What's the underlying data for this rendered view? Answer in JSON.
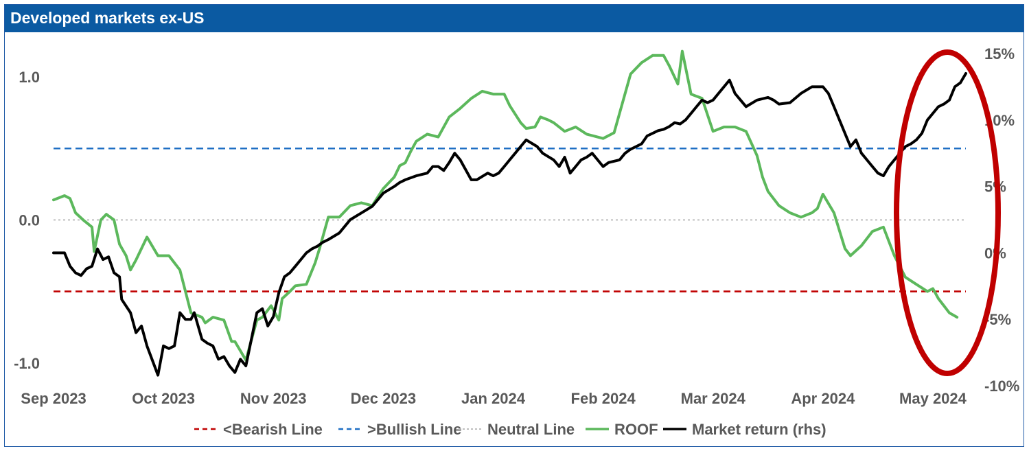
{
  "title": "Developed markets ex-US",
  "colors": {
    "header": "#0b5aa2",
    "bearish": "#c00000",
    "bullish": "#1f6fc4",
    "neutral": "#bfbfbf",
    "roof": "#5cb85c",
    "market": "#000000",
    "highlight": "#c00000"
  },
  "chart_data": {
    "type": "line",
    "x_tick_labels": [
      "Sep 2023",
      "Oct 2023",
      "Nov 2023",
      "Dec 2023",
      "Jan 2024",
      "Feb 2024",
      "Mar 2024",
      "Apr 2024",
      "May 2024"
    ],
    "x_domain": [
      0,
      8.3
    ],
    "y_left": {
      "ylim": [
        -1.15,
        1.25
      ],
      "ticks": [
        -1.0,
        0.0,
        1.0
      ],
      "tick_labels": [
        "-1.0",
        "0.0",
        "1.0"
      ]
    },
    "y_right": {
      "ylim": [
        -10,
        15
      ],
      "ticks": [
        -10,
        -5,
        0,
        5,
        10,
        15
      ],
      "tick_labels": [
        "-10%",
        "-5%",
        "0%",
        "5%",
        "10%",
        "15%"
      ],
      "note": "rhs"
    },
    "reference_lines": [
      {
        "name": "<Bearish Line",
        "value": -0.5,
        "style": "dashed",
        "color": "#c00000"
      },
      {
        "name": ">Bullish Line",
        "value": 0.5,
        "style": "dashed",
        "color": "#1f6fc4"
      },
      {
        "name": "Neutral Line",
        "value": 0.0,
        "style": "dotted",
        "color": "#bfbfbf"
      }
    ],
    "series": [
      {
        "name": "ROOF",
        "axis": "left",
        "color": "#5cb85c",
        "x": [
          0.0,
          0.1,
          0.15,
          0.2,
          0.27,
          0.35,
          0.37,
          0.43,
          0.48,
          0.55,
          0.6,
          0.66,
          0.7,
          0.75,
          0.85,
          0.95,
          1.05,
          1.15,
          1.25,
          1.35,
          1.38,
          1.45,
          1.55,
          1.62,
          1.65,
          1.75,
          1.85,
          1.9,
          1.98,
          2.05,
          2.08,
          2.15,
          2.2,
          2.3,
          2.38,
          2.42,
          2.5,
          2.6,
          2.7,
          2.8,
          2.9,
          3.0,
          3.1,
          3.15,
          3.2,
          3.25,
          3.3,
          3.4,
          3.5,
          3.6,
          3.7,
          3.8,
          3.9,
          4.0,
          4.1,
          4.15,
          4.25,
          4.3,
          4.38,
          4.43,
          4.5,
          4.55,
          4.65,
          4.75,
          4.85,
          5.0,
          5.1,
          5.25,
          5.35,
          5.45,
          5.55,
          5.6,
          5.68,
          5.72,
          5.8,
          5.9,
          6.0,
          6.1,
          6.2,
          6.3,
          6.4,
          6.45,
          6.5,
          6.6,
          6.7,
          6.8,
          6.9,
          6.95,
          7.0,
          7.1,
          7.2,
          7.25,
          7.35,
          7.45,
          7.55,
          7.65,
          7.75,
          7.85,
          7.95,
          8.0,
          8.05,
          8.1,
          8.15,
          8.22
        ],
        "values": [
          0.14,
          0.17,
          0.15,
          0.05,
          0.0,
          -0.05,
          -0.22,
          0.0,
          0.04,
          0.0,
          -0.17,
          -0.25,
          -0.35,
          -0.28,
          -0.12,
          -0.25,
          -0.25,
          -0.35,
          -0.65,
          -0.68,
          -0.72,
          -0.68,
          -0.7,
          -0.85,
          -0.85,
          -0.98,
          -0.7,
          -0.68,
          -0.6,
          -0.7,
          -0.55,
          -0.5,
          -0.46,
          -0.45,
          -0.3,
          -0.2,
          0.02,
          0.02,
          0.1,
          0.12,
          0.1,
          0.22,
          0.3,
          0.38,
          0.4,
          0.48,
          0.55,
          0.6,
          0.58,
          0.72,
          0.78,
          0.85,
          0.9,
          0.88,
          0.88,
          0.8,
          0.68,
          0.64,
          0.65,
          0.72,
          0.7,
          0.68,
          0.62,
          0.65,
          0.6,
          0.57,
          0.61,
          1.02,
          1.1,
          1.15,
          1.15,
          1.08,
          0.95,
          1.18,
          0.88,
          0.85,
          0.62,
          0.65,
          0.65,
          0.62,
          0.45,
          0.3,
          0.2,
          0.1,
          0.05,
          0.02,
          0.05,
          0.08,
          0.18,
          0.05,
          -0.2,
          -0.25,
          -0.18,
          -0.08,
          -0.05,
          -0.25,
          -0.4,
          -0.45,
          -0.5,
          -0.48,
          -0.55,
          -0.6,
          -0.65,
          -0.68
        ],
        "values_note": "approximate; x in months since Sep 2023, extended to full line shape"
      },
      {
        "name": "Market return (rhs)",
        "axis": "right",
        "color": "#000000",
        "x": [
          0.0,
          0.1,
          0.15,
          0.2,
          0.25,
          0.3,
          0.35,
          0.4,
          0.45,
          0.5,
          0.55,
          0.6,
          0.62,
          0.7,
          0.75,
          0.8,
          0.85,
          0.95,
          1.0,
          1.05,
          1.1,
          1.15,
          1.2,
          1.25,
          1.28,
          1.35,
          1.4,
          1.45,
          1.5,
          1.55,
          1.6,
          1.65,
          1.7,
          1.75,
          1.85,
          1.9,
          1.95,
          2.0,
          2.05,
          2.1,
          2.15,
          2.2,
          2.25,
          2.3,
          2.35,
          2.4,
          2.45,
          2.5,
          2.6,
          2.65,
          2.7,
          2.8,
          2.9,
          3.0,
          3.1,
          3.15,
          3.2,
          3.3,
          3.4,
          3.45,
          3.5,
          3.55,
          3.6,
          3.65,
          3.7,
          3.8,
          3.85,
          3.95,
          4.0,
          4.05,
          4.1,
          4.15,
          4.2,
          4.25,
          4.3,
          4.4,
          4.45,
          4.55,
          4.6,
          4.65,
          4.7,
          4.75,
          4.8,
          4.85,
          4.9,
          4.95,
          5.0,
          5.05,
          5.15,
          5.2,
          5.25,
          5.3,
          5.35,
          5.4,
          5.45,
          5.5,
          5.55,
          5.6,
          5.65,
          5.7,
          5.75,
          5.8,
          5.85,
          5.9,
          5.95,
          6.0,
          6.1,
          6.15,
          6.2,
          6.25,
          6.3,
          6.4,
          6.5,
          6.55,
          6.6,
          6.7,
          6.8,
          6.9,
          7.0,
          7.05,
          7.1,
          7.2,
          7.25,
          7.3,
          7.35,
          7.4,
          7.45,
          7.5,
          7.55,
          7.6,
          7.65,
          7.7,
          7.75,
          7.8,
          7.85,
          7.9,
          7.95,
          8.0,
          8.05,
          8.1,
          8.15,
          8.2,
          8.25,
          8.3
        ],
        "values": [
          0.0,
          0.0,
          -1.0,
          -1.5,
          -1.7,
          -1.2,
          -1.0,
          0.3,
          -0.5,
          -0.3,
          -1.5,
          -1.8,
          -3.5,
          -4.5,
          -6.0,
          -5.5,
          -7.0,
          -9.2,
          -7.0,
          -7.2,
          -7.0,
          -4.5,
          -5.0,
          -5.0,
          -4.5,
          -6.5,
          -6.8,
          -7.0,
          -8.0,
          -7.8,
          -8.5,
          -9.0,
          -8.0,
          -8.5,
          -4.5,
          -4.2,
          -5.5,
          -4.8,
          -3.0,
          -1.8,
          -1.5,
          -1.0,
          -0.5,
          0.0,
          0.3,
          0.5,
          0.8,
          1.0,
          1.5,
          2.0,
          2.5,
          3.0,
          3.5,
          4.5,
          5.0,
          5.3,
          5.5,
          5.8,
          6.0,
          6.5,
          6.5,
          6.2,
          6.8,
          7.5,
          7.0,
          5.5,
          5.5,
          6.0,
          5.8,
          6.0,
          6.5,
          7.0,
          7.5,
          8.0,
          8.5,
          8.0,
          7.5,
          7.0,
          6.5,
          7.2,
          6.0,
          6.5,
          7.0,
          7.2,
          7.5,
          7.0,
          6.5,
          6.8,
          7.0,
          7.5,
          7.8,
          8.0,
          8.2,
          8.8,
          9.0,
          9.2,
          9.3,
          9.5,
          9.8,
          9.7,
          10.0,
          10.5,
          11.0,
          11.5,
          11.3,
          11.5,
          12.5,
          13.0,
          12.0,
          11.5,
          11.0,
          11.5,
          11.7,
          11.5,
          11.2,
          11.3,
          12.0,
          12.5,
          12.5,
          12.0,
          11.0,
          9.0,
          8.0,
          8.5,
          7.5,
          7.0,
          6.5,
          6.0,
          5.8,
          6.5,
          7.0,
          7.5,
          8.0,
          8.2,
          8.5,
          9.0,
          10.0,
          10.5,
          11.0,
          11.2,
          11.5,
          12.5,
          12.8,
          13.5
        ],
        "values_note": "approximate, % return"
      }
    ],
    "legend": {
      "placement": "bottom",
      "entries": [
        "<Bearish Line",
        ">Bullish Line",
        "Neutral Line",
        "ROOF",
        "Market return (rhs)"
      ]
    },
    "annotation": {
      "type": "ellipse",
      "color": "#c00000",
      "over": "May 2024"
    },
    "grid": false
  }
}
